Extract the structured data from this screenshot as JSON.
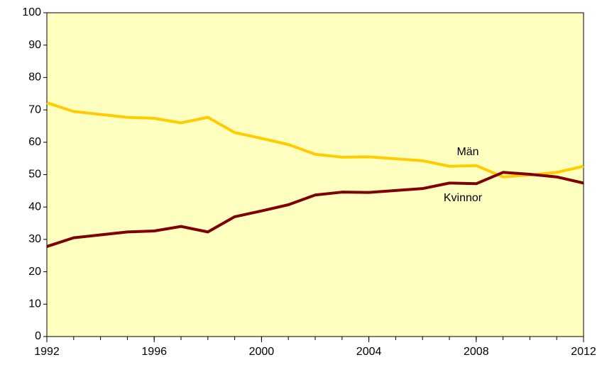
{
  "chart_data": {
    "type": "line",
    "x": [
      1992,
      1993,
      1994,
      1995,
      1996,
      1997,
      1998,
      1999,
      2000,
      2001,
      2002,
      2003,
      2004,
      2005,
      2006,
      2007,
      2008,
      2009,
      2010,
      2011,
      2012
    ],
    "series": [
      {
        "name": "Män",
        "color": "#ffcc00",
        "values": [
          72.2,
          69.5,
          68.6,
          67.7,
          67.4,
          66.0,
          67.7,
          63.0,
          61.2,
          59.3,
          56.3,
          55.4,
          55.5,
          54.9,
          54.3,
          52.6,
          52.8,
          49.3,
          49.9,
          50.7,
          52.6
        ]
      },
      {
        "name": "Kvinnor",
        "color": "#800000",
        "values": [
          27.8,
          30.5,
          31.4,
          32.3,
          32.6,
          34.0,
          32.3,
          37.0,
          38.8,
          40.7,
          43.7,
          44.6,
          44.5,
          45.1,
          45.7,
          47.4,
          47.2,
          50.7,
          50.1,
          49.3,
          47.4
        ]
      }
    ],
    "xlim": [
      1992,
      2012
    ],
    "xticks": [
      1992,
      1996,
      2000,
      2004,
      2008,
      2012
    ],
    "ylim": [
      0,
      100
    ],
    "yticks": [
      0,
      10,
      20,
      30,
      40,
      50,
      60,
      70,
      80,
      90,
      100
    ],
    "plot_background": "#ffffc0",
    "grid": false
  }
}
